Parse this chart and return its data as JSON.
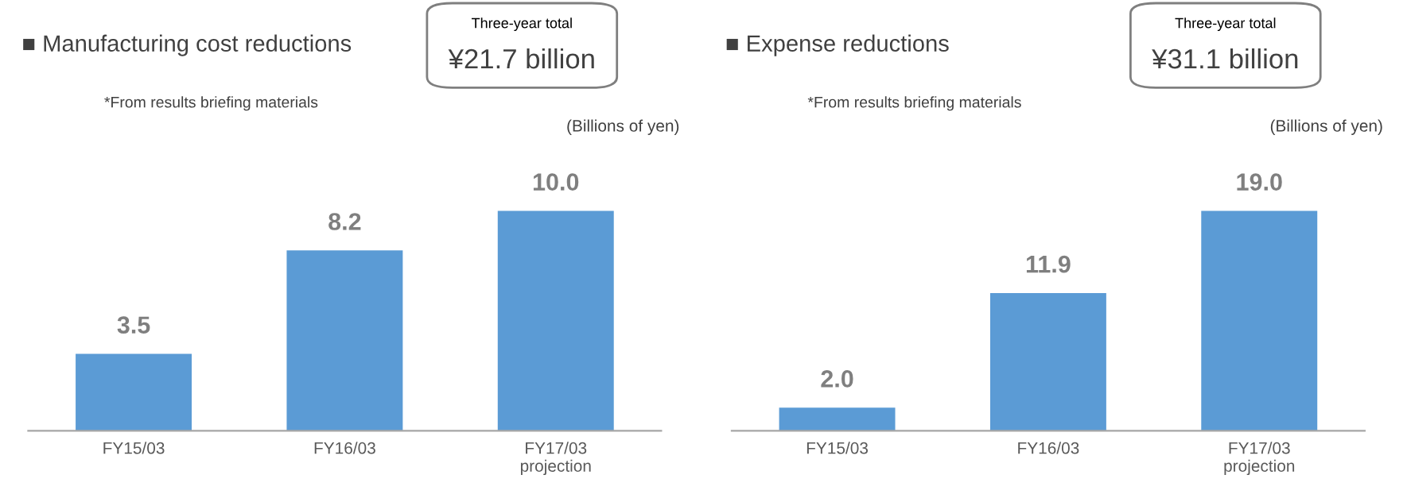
{
  "chart_data": [
    {
      "type": "bar",
      "title": "■ Manufacturing cost reductions",
      "categories": [
        "FY15/03",
        "FY16/03",
        "FY17/03\nprojection"
      ],
      "values": [
        3.5,
        8.2,
        10.0
      ],
      "value_labels": [
        "3.5",
        "8.2",
        "10.0"
      ],
      "color": "#5b9bd5",
      "grid": false,
      "legend": false,
      "annotations": [
        "*From results briefing materials",
        "(Billions of yen)",
        "Three-year total",
        "¥21.7 billion"
      ]
    },
    {
      "type": "bar",
      "title": "■ Expense reductions",
      "categories": [
        "FY15/03",
        "FY16/03",
        "FY17/03\nprojection"
      ],
      "values": [
        2.0,
        11.9,
        19.0
      ],
      "value_labels": [
        "2.0",
        "11.9",
        "19.0"
      ],
      "color": "#5b9bd5",
      "grid": false,
      "legend": false,
      "annotations": [
        "*From results briefing materials",
        "(Billions of yen)",
        "Three-year total",
        "¥31.1 billion"
      ]
    }
  ]
}
